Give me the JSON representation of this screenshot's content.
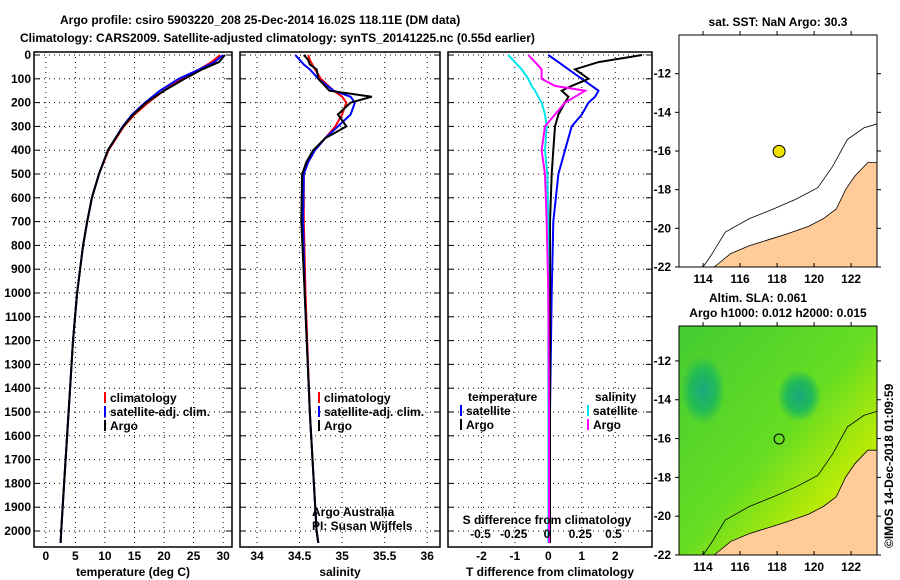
{
  "title": {
    "line1": "Argo profile: csiro 5903220_208 25-Dec-2014 16.02S 118.11E (DM data)",
    "line2": "Climatology: CARS2009. Satellite-adjusted climatology: synTS_20141225.nc (0.55d earlier)"
  },
  "colors": {
    "climatology": "#ff0000",
    "satellite": "#0000ff",
    "argo": "#000000",
    "sal_satellite": "#00e5ee",
    "sal_argo": "#ff00ff",
    "land": "#ffcc99",
    "float": "#f0e000"
  },
  "credit": "©IMOS 14-Dec-2018 01:09:59",
  "chart_data": [
    {
      "type": "line",
      "name": "temperature",
      "xlabel": "temperature (deg C)",
      "xlim": [
        -2,
        31.5
      ],
      "ylim": [
        2060,
        0
      ],
      "xticks": [
        0,
        5,
        10,
        15,
        20,
        25,
        30
      ],
      "yticks": [
        0,
        100,
        200,
        300,
        400,
        500,
        600,
        700,
        800,
        900,
        1000,
        1100,
        1200,
        1300,
        1400,
        1500,
        1600,
        1700,
        1800,
        1900,
        2000
      ],
      "ytick_labels": [
        "0",
        "100",
        "200",
        "300",
        "400",
        "500",
        "600",
        "700",
        "800",
        "900",
        "1000",
        "1100",
        "1200",
        "1300",
        "1400",
        "1500",
        "1600",
        "1700",
        "1800",
        "1900",
        "2000"
      ],
      "legend": [
        "climatology",
        "satellite-adj. clim.",
        "Argo"
      ],
      "depth": [
        0,
        30,
        60,
        100,
        150,
        200,
        250,
        300,
        400,
        500,
        600,
        700,
        800,
        1000,
        1200,
        1400,
        1600,
        1800,
        2000,
        2050
      ],
      "series": [
        {
          "name": "climatology",
          "values": [
            29.5,
            28,
            26,
            23,
            20,
            17.3,
            15,
            13.2,
            10.6,
            9,
            7.8,
            7,
            6.3,
            5.3,
            4.6,
            4.1,
            3.6,
            3.1,
            2.6,
            2.5
          ]
        },
        {
          "name": "satellite-adj. clim.",
          "values": [
            30,
            28.5,
            26,
            22.5,
            19.3,
            16.8,
            14.6,
            13,
            10.5,
            9,
            7.8,
            7,
            6.3,
            5.3,
            4.6,
            4.1,
            3.6,
            3.1,
            2.6,
            2.5
          ]
        },
        {
          "name": "Argo",
          "values": [
            30.3,
            29.3,
            26.5,
            23.5,
            20,
            17,
            14.8,
            13.1,
            10.5,
            9,
            7.8,
            7,
            6.3,
            5.3,
            4.6,
            4.1,
            3.6,
            3.1,
            2.6,
            2.5
          ]
        }
      ]
    },
    {
      "type": "line",
      "name": "salinity",
      "xlabel": "salinity",
      "xlim": [
        33.8,
        36.15
      ],
      "ylim": [
        2060,
        0
      ],
      "xticks": [
        34,
        34.5,
        35,
        35.5,
        36
      ],
      "xtick_labels": [
        "34",
        "34.5",
        "35",
        "35.5",
        "36"
      ],
      "legend": [
        "climatology",
        "satellite-adj. clim.",
        "Argo"
      ],
      "annotation": [
        "Argo Australia",
        "PI: Susan Wijffels"
      ],
      "depth": [
        0,
        20,
        40,
        60,
        100,
        150,
        175,
        200,
        250,
        300,
        350,
        400,
        450,
        500,
        700,
        1000,
        1500,
        2000,
        2050
      ],
      "series": [
        {
          "name": "climatology",
          "values": [
            34.6,
            34.62,
            34.65,
            34.68,
            34.75,
            34.9,
            35,
            35.05,
            35,
            34.92,
            34.8,
            34.68,
            34.6,
            34.55,
            34.55,
            34.57,
            34.62,
            34.7,
            34.72
          ]
        },
        {
          "name": "satellite-adj. clim.",
          "values": [
            34.45,
            34.5,
            34.55,
            34.62,
            34.72,
            34.9,
            35.1,
            35.15,
            35.1,
            34.95,
            34.8,
            34.68,
            34.6,
            34.55,
            34.54,
            34.56,
            34.62,
            34.7,
            34.72
          ]
        },
        {
          "name": "Argo",
          "values": [
            34.55,
            34.6,
            34.62,
            34.7,
            34.72,
            34.85,
            35.35,
            35.1,
            34.95,
            35.05,
            34.8,
            34.66,
            34.58,
            34.53,
            34.52,
            34.56,
            34.62,
            34.7,
            34.72
          ]
        }
      ]
    },
    {
      "type": "line",
      "name": "difference",
      "xlabel": "T difference from climatology",
      "xlabel2": "S difference from climatology",
      "xlim": [
        -3,
        3.1
      ],
      "ylim": [
        2060,
        0
      ],
      "xticks": [
        -2,
        -1,
        0,
        1,
        2
      ],
      "xtick_labels": [
        "-2",
        "-1",
        "0",
        "1",
        "2"
      ],
      "sticks": [
        -0.5,
        -0.25,
        0,
        0.25,
        0.5
      ],
      "stick_labels": [
        "-0.5",
        "-0.25",
        "0",
        "0.25",
        "0.5"
      ],
      "legend": {
        "temperature": "temperature",
        "salinity": "salinity",
        "satellite": "satellite",
        "argo": "Argo"
      },
      "depth": [
        0,
        30,
        60,
        100,
        130,
        150,
        175,
        200,
        250,
        300,
        400,
        500,
        700,
        1000,
        1500,
        2000,
        2050
      ],
      "series": [
        {
          "name": "T satellite",
          "values": [
            0,
            0.3,
            0.6,
            1.0,
            1.3,
            1.5,
            1.4,
            1.2,
            1.0,
            0.7,
            0.5,
            0.3,
            0.15,
            0.1,
            0.05,
            0.05,
            0.05
          ]
        },
        {
          "name": "T Argo",
          "values": [
            2.8,
            1.5,
            0.8,
            1.2,
            0.7,
            0.4,
            0.6,
            0.5,
            0.3,
            0.2,
            0.15,
            0.1,
            0.05,
            0.05,
            0.05,
            0.05,
            0.05
          ]
        },
        {
          "name": "S satellite",
          "values": [
            -1.2,
            -1.0,
            -0.8,
            -0.6,
            -0.5,
            -0.4,
            -0.3,
            -0.2,
            -0.1,
            -0.05,
            -0.1,
            -0.03,
            0,
            0,
            0,
            0,
            0
          ]
        },
        {
          "name": "S Argo",
          "values": [
            -0.6,
            -0.4,
            -0.2,
            -0.2,
            0.2,
            1.1,
            0.8,
            0.5,
            0.2,
            -0.1,
            -0.2,
            -0.1,
            -0.05,
            0,
            0.02,
            0.02,
            0.02
          ]
        }
      ]
    },
    {
      "type": "map",
      "name": "sst-map",
      "title": "sat. SST: NaN Argo: 30.3",
      "lon": [
        112.7,
        123.4
      ],
      "lat": [
        -10,
        -22
      ],
      "xticks": [
        114,
        116,
        118,
        120,
        122
      ],
      "yticks": [
        -12,
        -14,
        -16,
        -18,
        -20,
        -22
      ],
      "ytick_labels": [
        "-12",
        "-14",
        "-16",
        "-18",
        "-20",
        "-22"
      ],
      "float": [
        118.11,
        -16.02
      ]
    },
    {
      "type": "map",
      "name": "sla-map",
      "title": "Altim. SLA: 0.061",
      "subtitle": "Argo h1000: 0.012 h2000: 0.015",
      "lon": [
        112.7,
        123.4
      ],
      "lat": [
        -10.2,
        -22
      ],
      "xticks": [
        114,
        116,
        118,
        120,
        122
      ],
      "yticks": [
        -12,
        -14,
        -16,
        -18,
        -20,
        -22
      ],
      "ytick_labels": [
        "-12",
        "-14",
        "-16",
        "-18",
        "-20",
        "-22"
      ],
      "float": [
        118.11,
        -16.02
      ]
    }
  ]
}
